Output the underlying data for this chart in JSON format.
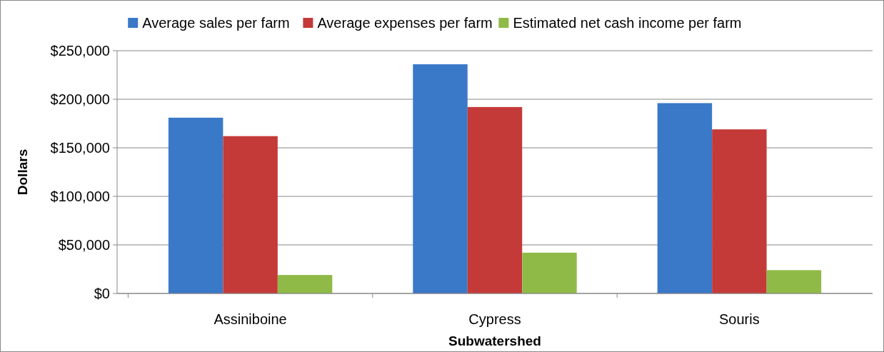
{
  "chart_data": {
    "type": "bar",
    "xlabel": "Subwatershed",
    "ylabel": "Dollars",
    "categories": [
      "Assiniboine",
      "Cypress",
      "Souris"
    ],
    "series": [
      {
        "name": "Average sales per farm",
        "color": "#3a78c8",
        "values": [
          181000,
          236000,
          196000
        ]
      },
      {
        "name": "Average expenses per farm",
        "color": "#c43a38",
        "values": [
          162000,
          192000,
          169000
        ]
      },
      {
        "name": "Estimated net cash income per farm",
        "color": "#8fba48",
        "values": [
          19000,
          42000,
          24000
        ]
      }
    ],
    "ylim": [
      0,
      250000
    ],
    "yticks": [
      {
        "value": 0,
        "label": "$0"
      },
      {
        "value": 50000,
        "label": "$50,000"
      },
      {
        "value": 100000,
        "label": "$100,000"
      },
      {
        "value": 150000,
        "label": "$150,000"
      },
      {
        "value": 200000,
        "label": "$200,000"
      },
      {
        "value": 250000,
        "label": "$250,000"
      }
    ],
    "grid": "y",
    "legend": "top"
  }
}
